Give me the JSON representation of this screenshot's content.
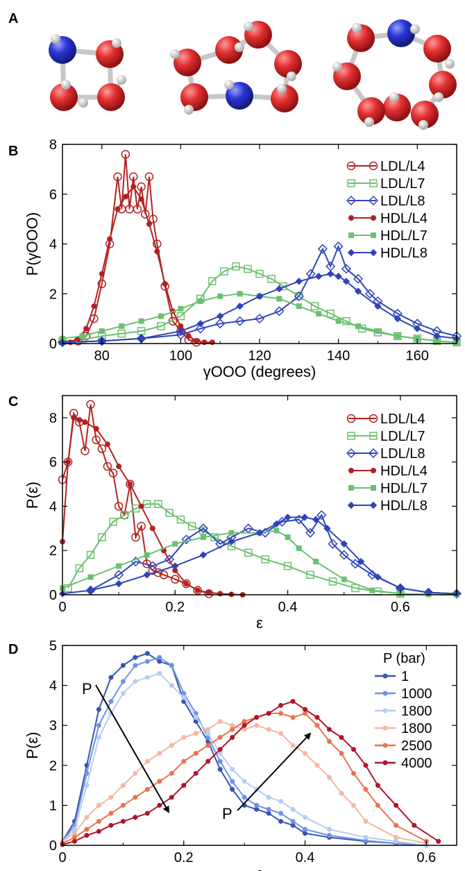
{
  "panel_labels": [
    "A",
    "B",
    "C",
    "D"
  ],
  "colors": {
    "dark_red": "#b22222",
    "green": "#6cc070",
    "blue": "#3044b8",
    "oxygen": "#d42a2a",
    "nitrogen": "#2a35d4",
    "hydrogen": "#e6e6e6"
  },
  "molecules": [
    {
      "label": "4-membered ring"
    },
    {
      "label": "7-membered ring"
    },
    {
      "label": "8-membered ring"
    }
  ],
  "chart_data": [
    {
      "panel": "B",
      "type": "line",
      "xlabel": "γOOO (degrees)",
      "ylabel": "P(γOOO)",
      "xlim": [
        70,
        170
      ],
      "ylim": [
        0,
        8
      ],
      "xticks": [
        80,
        100,
        120,
        140,
        160
      ],
      "yticks": [
        0,
        2,
        4,
        6,
        8
      ],
      "legend_position": "top-right",
      "series": [
        {
          "name": "LDL/L4",
          "color": "#b22222",
          "marker": "open-circle",
          "x": [
            74,
            76,
            78,
            80,
            82,
            84,
            85,
            86,
            87,
            88,
            89,
            90,
            91,
            92,
            93,
            94,
            96,
            98,
            100,
            102,
            104
          ],
          "y": [
            0.1,
            0.3,
            1.0,
            2.4,
            4.0,
            6.7,
            5.4,
            7.6,
            5.4,
            6.7,
            5.4,
            6.3,
            5.2,
            6.7,
            5.0,
            4.0,
            2.3,
            0.9,
            0.5,
            0.15,
            0.05
          ]
        },
        {
          "name": "LDL/L7",
          "color": "#6cc070",
          "marker": "open-square",
          "x": [
            70,
            75,
            80,
            85,
            90,
            95,
            100,
            105,
            108,
            111,
            114,
            117,
            120,
            123,
            126,
            130,
            134,
            138,
            142,
            146,
            150,
            155,
            160,
            165,
            170
          ],
          "y": [
            0.1,
            0.15,
            0.3,
            0.4,
            0.5,
            0.7,
            1.1,
            1.8,
            2.5,
            2.9,
            3.1,
            3.0,
            2.8,
            2.6,
            2.3,
            1.9,
            1.5,
            1.2,
            0.9,
            0.6,
            0.45,
            0.3,
            0.2,
            0.1,
            0.05
          ]
        },
        {
          "name": "LDL/L8",
          "color": "#3044b8",
          "marker": "open-diamond",
          "x": [
            70,
            80,
            90,
            100,
            105,
            110,
            115,
            120,
            125,
            130,
            133,
            136,
            138,
            140,
            142,
            145,
            148,
            150,
            155,
            160,
            165,
            170
          ],
          "y": [
            0.05,
            0.1,
            0.2,
            0.35,
            0.6,
            0.8,
            0.9,
            1.0,
            1.3,
            1.9,
            2.8,
            3.8,
            3.1,
            3.9,
            3.0,
            2.6,
            2.0,
            1.7,
            1.2,
            0.8,
            0.5,
            0.3
          ]
        },
        {
          "name": "HDL/L4",
          "color": "#b22222",
          "marker": "filled-circle",
          "x": [
            72,
            74,
            76,
            78,
            80,
            82,
            84,
            86,
            88,
            90,
            92,
            94,
            96,
            98,
            100,
            102,
            104,
            106,
            108
          ],
          "y": [
            0.05,
            0.2,
            0.6,
            1.5,
            2.8,
            4.2,
            5.4,
            5.9,
            6.3,
            5.8,
            4.8,
            3.7,
            2.4,
            1.3,
            0.7,
            0.3,
            0.1,
            0.05,
            0.05
          ]
        },
        {
          "name": "HDL/L7",
          "color": "#6cc070",
          "marker": "filled-square",
          "x": [
            70,
            75,
            80,
            85,
            90,
            95,
            100,
            105,
            110,
            115,
            120,
            125,
            130,
            135,
            140,
            145,
            150,
            155,
            160,
            165,
            170
          ],
          "y": [
            0.2,
            0.3,
            0.5,
            0.7,
            0.9,
            1.1,
            1.4,
            1.7,
            1.9,
            2.0,
            1.9,
            1.8,
            1.5,
            1.2,
            0.9,
            0.7,
            0.5,
            0.3,
            0.2,
            0.1,
            0.05
          ]
        },
        {
          "name": "HDL/L8",
          "color": "#3044b8",
          "marker": "filled-diamond",
          "x": [
            70,
            80,
            90,
            100,
            105,
            110,
            115,
            120,
            125,
            130,
            135,
            138,
            140,
            142,
            145,
            150,
            155,
            160,
            165,
            170
          ],
          "y": [
            0.05,
            0.1,
            0.2,
            0.5,
            0.8,
            1.1,
            1.5,
            1.9,
            2.2,
            2.5,
            2.7,
            2.8,
            2.7,
            2.5,
            2.1,
            1.5,
            1.0,
            0.6,
            0.3,
            0.2
          ]
        }
      ]
    },
    {
      "panel": "C",
      "type": "line",
      "xlabel": "ε",
      "ylabel": "P(ε)",
      "xlim": [
        0,
        0.7
      ],
      "ylim": [
        0,
        9
      ],
      "xticks": [
        0,
        0.2,
        0.4,
        0.6
      ],
      "xtick_labels": [
        "0",
        "0.2",
        "0.4",
        "0.6"
      ],
      "yticks": [
        0,
        2,
        4,
        6,
        8
      ],
      "legend_position": "top-right",
      "series": [
        {
          "name": "LDL/L4",
          "color": "#b22222",
          "marker": "open-circle",
          "x": [
            0.0,
            0.01,
            0.02,
            0.03,
            0.04,
            0.05,
            0.06,
            0.07,
            0.08,
            0.09,
            0.1,
            0.11,
            0.12,
            0.13,
            0.14,
            0.15,
            0.16,
            0.17,
            0.18,
            0.2,
            0.22,
            0.24,
            0.26
          ],
          "y": [
            5.2,
            6.0,
            8.2,
            7.8,
            6.5,
            8.6,
            7.0,
            6.6,
            5.8,
            5.5,
            4.0,
            3.6,
            5.0,
            2.6,
            3.1,
            1.4,
            1.1,
            1.0,
            0.9,
            0.7,
            0.5,
            0.2,
            0.05
          ]
        },
        {
          "name": "LDL/L7",
          "color": "#6cc070",
          "marker": "open-square",
          "x": [
            0.01,
            0.03,
            0.05,
            0.07,
            0.09,
            0.11,
            0.13,
            0.15,
            0.17,
            0.19,
            0.21,
            0.23,
            0.25,
            0.27,
            0.3,
            0.33,
            0.36,
            0.4,
            0.44,
            0.48,
            0.52,
            0.56,
            0.6
          ],
          "y": [
            0.3,
            1.2,
            1.8,
            2.6,
            3.3,
            3.6,
            3.9,
            4.1,
            4.1,
            3.7,
            3.4,
            3.1,
            2.9,
            2.6,
            2.2,
            1.9,
            1.6,
            1.3,
            0.9,
            0.6,
            0.3,
            0.15,
            0.05
          ]
        },
        {
          "name": "LDL/L8",
          "color": "#3044b8",
          "marker": "open-diamond",
          "x": [
            0.05,
            0.1,
            0.13,
            0.16,
            0.19,
            0.22,
            0.25,
            0.28,
            0.3,
            0.33,
            0.36,
            0.39,
            0.42,
            0.44,
            0.46,
            0.48,
            0.5,
            0.52,
            0.55,
            0.6,
            0.65,
            0.7
          ],
          "y": [
            0.2,
            0.9,
            1.5,
            1.3,
            1.6,
            2.5,
            3.0,
            2.3,
            2.6,
            3.0,
            2.8,
            3.3,
            3.4,
            2.8,
            3.6,
            2.3,
            1.8,
            1.4,
            0.9,
            0.3,
            0.1,
            0.05
          ]
        },
        {
          "name": "HDL/L4",
          "color": "#b22222",
          "marker": "filled-circle",
          "x": [
            0.0,
            0.01,
            0.02,
            0.03,
            0.04,
            0.06,
            0.08,
            0.1,
            0.12,
            0.14,
            0.16,
            0.18,
            0.2,
            0.22,
            0.24,
            0.26,
            0.28,
            0.3,
            0.32
          ],
          "y": [
            2.4,
            6.0,
            8.0,
            7.9,
            7.8,
            7.5,
            6.8,
            5.8,
            5.0,
            4.0,
            3.0,
            2.0,
            1.1,
            0.5,
            0.2,
            0.1,
            0.05,
            0.02,
            0.0
          ]
        },
        {
          "name": "HDL/L7",
          "color": "#6cc070",
          "marker": "filled-square",
          "x": [
            0.0,
            0.05,
            0.1,
            0.15,
            0.2,
            0.25,
            0.3,
            0.35,
            0.38,
            0.4,
            0.42,
            0.45,
            0.5,
            0.55,
            0.6,
            0.65,
            0.7
          ],
          "y": [
            0.3,
            0.8,
            1.3,
            1.8,
            2.3,
            2.6,
            2.8,
            2.8,
            2.9,
            2.6,
            2.1,
            1.5,
            0.7,
            0.2,
            0.05,
            0.02,
            0.0
          ]
        },
        {
          "name": "HDL/L8",
          "color": "#3044b8",
          "marker": "filled-diamond",
          "x": [
            0.0,
            0.05,
            0.1,
            0.15,
            0.2,
            0.25,
            0.3,
            0.35,
            0.38,
            0.4,
            0.43,
            0.45,
            0.47,
            0.5,
            0.53,
            0.56,
            0.6,
            0.65,
            0.7
          ],
          "y": [
            0.05,
            0.2,
            0.5,
            0.9,
            1.3,
            1.8,
            2.4,
            2.8,
            3.2,
            3.5,
            3.5,
            3.4,
            3.0,
            2.3,
            1.5,
            0.8,
            0.3,
            0.1,
            0.05
          ]
        }
      ]
    },
    {
      "panel": "D",
      "type": "line",
      "xlabel": "ε",
      "ylabel": "P(ε)",
      "xlim": [
        0,
        0.65
      ],
      "ylim": [
        0,
        5
      ],
      "xticks": [
        0,
        0.2,
        0.4,
        0.6
      ],
      "xtick_labels": [
        "0",
        "0.2",
        "0.4",
        "0.6"
      ],
      "yticks": [
        0,
        1,
        2,
        3,
        4,
        5
      ],
      "legend_title": "P (bar)",
      "legend_position": "top-right",
      "arrow_labels": [
        "P",
        "P"
      ],
      "series": [
        {
          "name": "1",
          "color": "#3a52b8",
          "x": [
            0.0,
            0.02,
            0.04,
            0.06,
            0.08,
            0.1,
            0.12,
            0.14,
            0.16,
            0.18,
            0.2,
            0.22,
            0.24,
            0.26,
            0.28,
            0.3,
            0.32,
            0.34,
            0.36,
            0.38,
            0.4,
            0.44,
            0.5,
            0.55,
            0.6
          ],
          "y": [
            0.1,
            0.6,
            2.0,
            3.4,
            4.2,
            4.5,
            4.7,
            4.8,
            4.6,
            4.5,
            3.6,
            3.1,
            2.6,
            1.9,
            1.4,
            1.0,
            0.9,
            0.8,
            0.6,
            0.5,
            0.3,
            0.2,
            0.1,
            0.05,
            0.0
          ]
        },
        {
          "name": "1000",
          "color": "#6f93e0",
          "x": [
            0.0,
            0.02,
            0.04,
            0.06,
            0.08,
            0.1,
            0.12,
            0.14,
            0.16,
            0.18,
            0.2,
            0.22,
            0.24,
            0.26,
            0.28,
            0.3,
            0.32,
            0.34,
            0.36,
            0.38,
            0.4,
            0.44,
            0.5,
            0.55,
            0.6
          ],
          "y": [
            0.1,
            0.5,
            1.8,
            3.0,
            3.6,
            4.1,
            4.5,
            4.6,
            4.7,
            4.5,
            3.8,
            3.3,
            2.7,
            2.1,
            1.6,
            1.2,
            1.0,
            0.9,
            0.8,
            0.6,
            0.4,
            0.25,
            0.12,
            0.05,
            0.0
          ]
        },
        {
          "name": "1800",
          "color": "#b6cdf2",
          "x": [
            0.0,
            0.02,
            0.04,
            0.06,
            0.08,
            0.1,
            0.12,
            0.14,
            0.16,
            0.18,
            0.2,
            0.22,
            0.24,
            0.26,
            0.28,
            0.3,
            0.32,
            0.34,
            0.36,
            0.38,
            0.4,
            0.44,
            0.5,
            0.55,
            0.6
          ],
          "y": [
            0.1,
            0.4,
            1.5,
            2.7,
            3.3,
            3.8,
            4.1,
            4.2,
            4.3,
            4.0,
            3.7,
            3.2,
            2.8,
            2.3,
            1.9,
            1.6,
            1.4,
            1.2,
            1.1,
            0.9,
            0.7,
            0.4,
            0.2,
            0.1,
            0.0
          ]
        },
        {
          "name": "1800",
          "color": "#f2b9a3",
          "x": [
            0.0,
            0.02,
            0.04,
            0.06,
            0.08,
            0.1,
            0.12,
            0.14,
            0.16,
            0.18,
            0.2,
            0.22,
            0.24,
            0.26,
            0.28,
            0.3,
            0.32,
            0.34,
            0.36,
            0.38,
            0.4,
            0.42,
            0.44,
            0.46,
            0.48,
            0.5,
            0.55,
            0.6
          ],
          "y": [
            0.1,
            0.3,
            0.7,
            1.0,
            1.2,
            1.5,
            1.8,
            2.1,
            2.3,
            2.5,
            2.7,
            2.8,
            2.9,
            3.1,
            3.0,
            2.9,
            3.0,
            2.9,
            2.8,
            2.5,
            2.3,
            2.0,
            1.7,
            1.3,
            1.0,
            0.6,
            0.2,
            0.05
          ]
        },
        {
          "name": "2500",
          "color": "#e8744f",
          "x": [
            0.0,
            0.02,
            0.04,
            0.06,
            0.08,
            0.1,
            0.12,
            0.14,
            0.16,
            0.18,
            0.2,
            0.22,
            0.24,
            0.26,
            0.28,
            0.3,
            0.32,
            0.34,
            0.36,
            0.38,
            0.4,
            0.42,
            0.44,
            0.46,
            0.48,
            0.5,
            0.52,
            0.55,
            0.6
          ],
          "y": [
            0.05,
            0.2,
            0.4,
            0.6,
            0.8,
            1.0,
            1.2,
            1.4,
            1.6,
            1.8,
            2.1,
            2.3,
            2.5,
            2.7,
            2.9,
            3.1,
            3.2,
            3.3,
            3.3,
            3.2,
            3.3,
            3.0,
            2.6,
            2.3,
            1.8,
            1.4,
            1.0,
            0.5,
            0.1
          ]
        },
        {
          "name": "4000",
          "color": "#b0142e",
          "x": [
            0.0,
            0.02,
            0.04,
            0.06,
            0.08,
            0.1,
            0.12,
            0.14,
            0.16,
            0.18,
            0.2,
            0.22,
            0.24,
            0.26,
            0.28,
            0.3,
            0.32,
            0.34,
            0.36,
            0.38,
            0.4,
            0.42,
            0.44,
            0.46,
            0.48,
            0.5,
            0.52,
            0.55,
            0.58,
            0.62
          ],
          "y": [
            0.02,
            0.1,
            0.25,
            0.35,
            0.5,
            0.6,
            0.7,
            0.8,
            1.0,
            1.2,
            1.5,
            1.8,
            2.1,
            2.4,
            2.7,
            3.0,
            3.2,
            3.3,
            3.5,
            3.6,
            3.4,
            3.2,
            2.9,
            2.7,
            2.4,
            2.0,
            1.5,
            1.0,
            0.5,
            0.1
          ]
        }
      ]
    }
  ]
}
